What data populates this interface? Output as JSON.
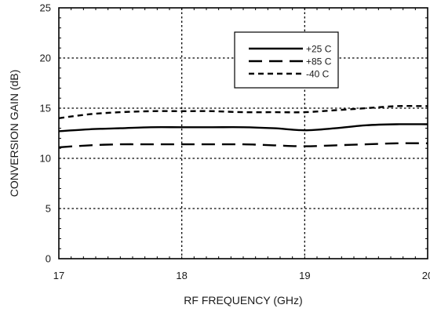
{
  "chart_data": {
    "type": "line",
    "title": "",
    "xlabel": "RF FREQUENCY (GHz)",
    "ylabel": "CONVERSION GAIN (dB)",
    "xlim": [
      17,
      20
    ],
    "ylim": [
      0,
      25
    ],
    "xticks": [
      17,
      18,
      19,
      20
    ],
    "yticks": [
      0,
      5,
      10,
      15,
      20,
      25
    ],
    "grid": true,
    "legend_position": "top-right",
    "series": [
      {
        "name": "+25 C",
        "dash": "solid",
        "x": [
          17.0,
          17.25,
          17.5,
          17.75,
          18.0,
          18.25,
          18.5,
          18.75,
          19.0,
          19.25,
          19.5,
          19.75,
          20.0
        ],
        "values": [
          12.7,
          12.9,
          13.0,
          13.1,
          13.1,
          13.1,
          13.1,
          13.0,
          12.8,
          13.0,
          13.3,
          13.4,
          13.4
        ]
      },
      {
        "name": "+85 C",
        "dash": "long",
        "x": [
          17.0,
          17.25,
          17.5,
          17.75,
          18.0,
          18.25,
          18.5,
          18.75,
          19.0,
          19.25,
          19.5,
          19.75,
          20.0
        ],
        "values": [
          11.1,
          11.3,
          11.4,
          11.4,
          11.4,
          11.4,
          11.4,
          11.3,
          11.2,
          11.3,
          11.4,
          11.5,
          11.5
        ]
      },
      {
        "name": "-40 C",
        "dash": "short",
        "x": [
          17.0,
          17.25,
          17.5,
          17.75,
          18.0,
          18.25,
          18.5,
          18.75,
          19.0,
          19.25,
          19.5,
          19.75,
          20.0
        ],
        "values": [
          14.0,
          14.4,
          14.6,
          14.7,
          14.7,
          14.7,
          14.6,
          14.6,
          14.6,
          14.8,
          15.0,
          15.2,
          15.2
        ]
      }
    ]
  },
  "colors": {
    "line": "#000000",
    "grid": "#000000",
    "background": "#ffffff"
  }
}
